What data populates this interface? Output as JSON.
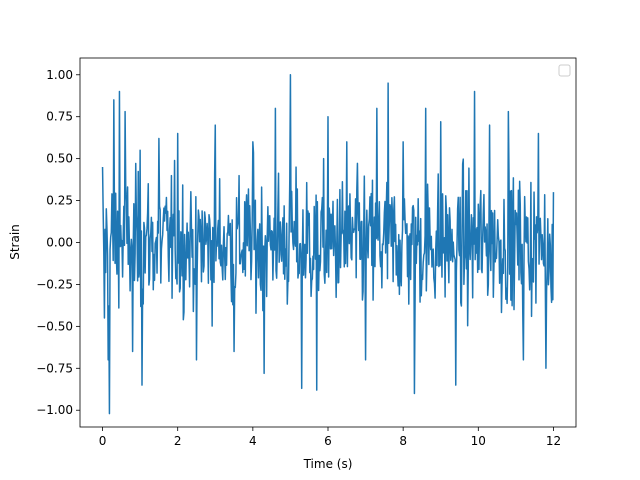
{
  "chart_data": {
    "type": "line",
    "title": "",
    "xlabel": "Time (s)",
    "ylabel": "Strain",
    "xlim": [
      -0.6,
      12.6
    ],
    "ylim": [
      -1.1,
      1.1
    ],
    "x_ticks": [
      0,
      2,
      4,
      6,
      8,
      10,
      12
    ],
    "x_tick_labels": [
      "0",
      "2",
      "4",
      "6",
      "8",
      "10",
      "12"
    ],
    "y_ticks": [
      -1.0,
      -0.75,
      -0.5,
      -0.25,
      0.0,
      0.25,
      0.5,
      0.75,
      1.0
    ],
    "y_tick_labels": [
      "−1.00",
      "−0.75",
      "−0.50",
      "−0.25",
      "0.00",
      "0.25",
      "0.50",
      "0.75",
      "1.00"
    ],
    "grid": false,
    "legend": {
      "placement": "top-right",
      "entries": []
    },
    "series": [
      {
        "color": "#1f77b4",
        "x_range": [
          0,
          12
        ],
        "sample_rate_hz": 60,
        "envelope_points": [
          {
            "x": 0.0,
            "y": 0.45
          },
          {
            "x": 0.05,
            "y": -0.45
          },
          {
            "x": 0.15,
            "y": -0.7
          },
          {
            "x": 0.18,
            "y": -1.02
          },
          {
            "x": 0.3,
            "y": 0.85
          },
          {
            "x": 0.45,
            "y": 0.9
          },
          {
            "x": 0.6,
            "y": 0.78
          },
          {
            "x": 0.8,
            "y": -0.65
          },
          {
            "x": 1.0,
            "y": 0.55
          },
          {
            "x": 1.05,
            "y": -0.85
          },
          {
            "x": 1.5,
            "y": 0.62
          },
          {
            "x": 2.0,
            "y": 0.65
          },
          {
            "x": 2.5,
            "y": -0.7
          },
          {
            "x": 3.0,
            "y": 0.7
          },
          {
            "x": 3.5,
            "y": -0.65
          },
          {
            "x": 4.0,
            "y": 0.6
          },
          {
            "x": 4.3,
            "y": -0.78
          },
          {
            "x": 4.6,
            "y": 0.8
          },
          {
            "x": 5.0,
            "y": 1.0
          },
          {
            "x": 5.3,
            "y": -0.87
          },
          {
            "x": 5.7,
            "y": -0.88
          },
          {
            "x": 6.0,
            "y": 0.75
          },
          {
            "x": 6.5,
            "y": 0.6
          },
          {
            "x": 7.0,
            "y": -0.7
          },
          {
            "x": 7.3,
            "y": 0.8
          },
          {
            "x": 7.6,
            "y": 0.95
          },
          {
            "x": 8.0,
            "y": 0.6
          },
          {
            "x": 8.3,
            "y": -0.9
          },
          {
            "x": 8.6,
            "y": 0.8
          },
          {
            "x": 9.0,
            "y": 0.72
          },
          {
            "x": 9.4,
            "y": -0.85
          },
          {
            "x": 9.9,
            "y": 0.9
          },
          {
            "x": 10.3,
            "y": 0.7
          },
          {
            "x": 10.8,
            "y": 0.78
          },
          {
            "x": 11.2,
            "y": -0.7
          },
          {
            "x": 11.6,
            "y": 0.65
          },
          {
            "x": 11.8,
            "y": -0.75
          },
          {
            "x": 12.0,
            "y": 0.3
          }
        ],
        "typical_amplitude": 0.5
      }
    ]
  }
}
